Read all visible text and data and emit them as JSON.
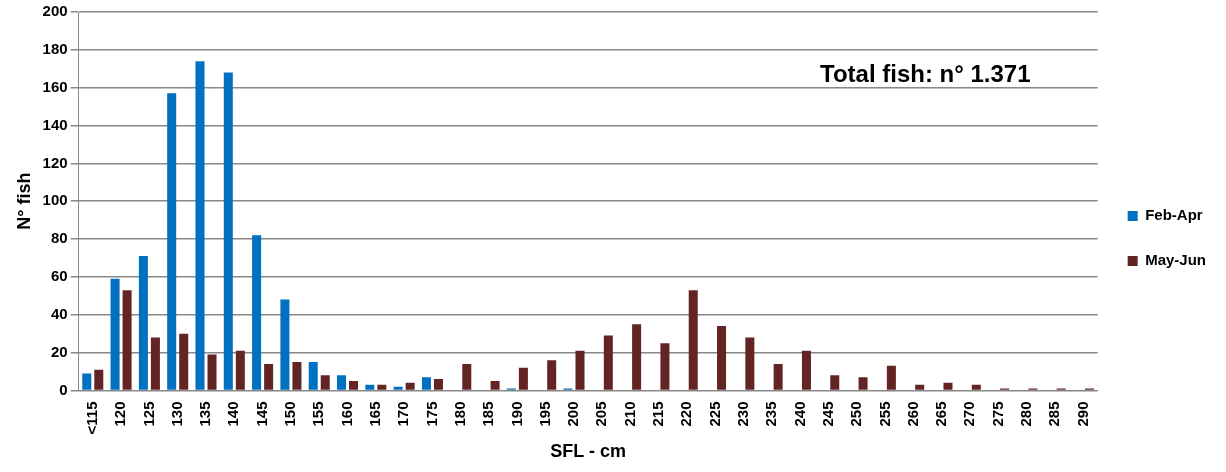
{
  "chart_data": {
    "type": "bar",
    "xlabel": "SFL - cm",
    "ylabel": "N° fish",
    "categories": [
      "<115",
      "120",
      "125",
      "130",
      "135",
      "140",
      "145",
      "150",
      "155",
      "160",
      "165",
      "170",
      "175",
      "180",
      "185",
      "190",
      "195",
      "200",
      "205",
      "210",
      "215",
      "220",
      "225",
      "230",
      "235",
      "240",
      "245",
      "250",
      "255",
      "260",
      "265",
      "270",
      "275",
      "280",
      "285",
      "290"
    ],
    "series": [
      {
        "name": "Feb-Apr",
        "color": "#0070c0",
        "values": [
          9,
          59,
          71,
          157,
          174,
          168,
          82,
          48,
          15,
          8,
          3,
          2,
          7,
          0,
          0,
          1,
          0,
          1,
          0,
          0,
          0,
          0,
          0,
          0,
          0,
          0,
          0,
          0,
          0,
          0,
          0,
          0,
          0,
          0,
          0,
          0
        ]
      },
      {
        "name": "May-Jun",
        "color": "#632523",
        "values": [
          11,
          53,
          28,
          30,
          19,
          21,
          14,
          15,
          8,
          5,
          3,
          4,
          6,
          14,
          5,
          12,
          16,
          21,
          29,
          35,
          25,
          53,
          34,
          28,
          14,
          21,
          8,
          7,
          13,
          3,
          4,
          3,
          1,
          1,
          1,
          1
        ]
      }
    ],
    "ylim": [
      0,
      200
    ],
    "yticks": [
      0,
      20,
      40,
      60,
      80,
      100,
      120,
      140,
      160,
      180,
      200
    ],
    "grid": "y",
    "legend": "right",
    "annotations": [
      "Total fish: n° 1.371"
    ]
  }
}
